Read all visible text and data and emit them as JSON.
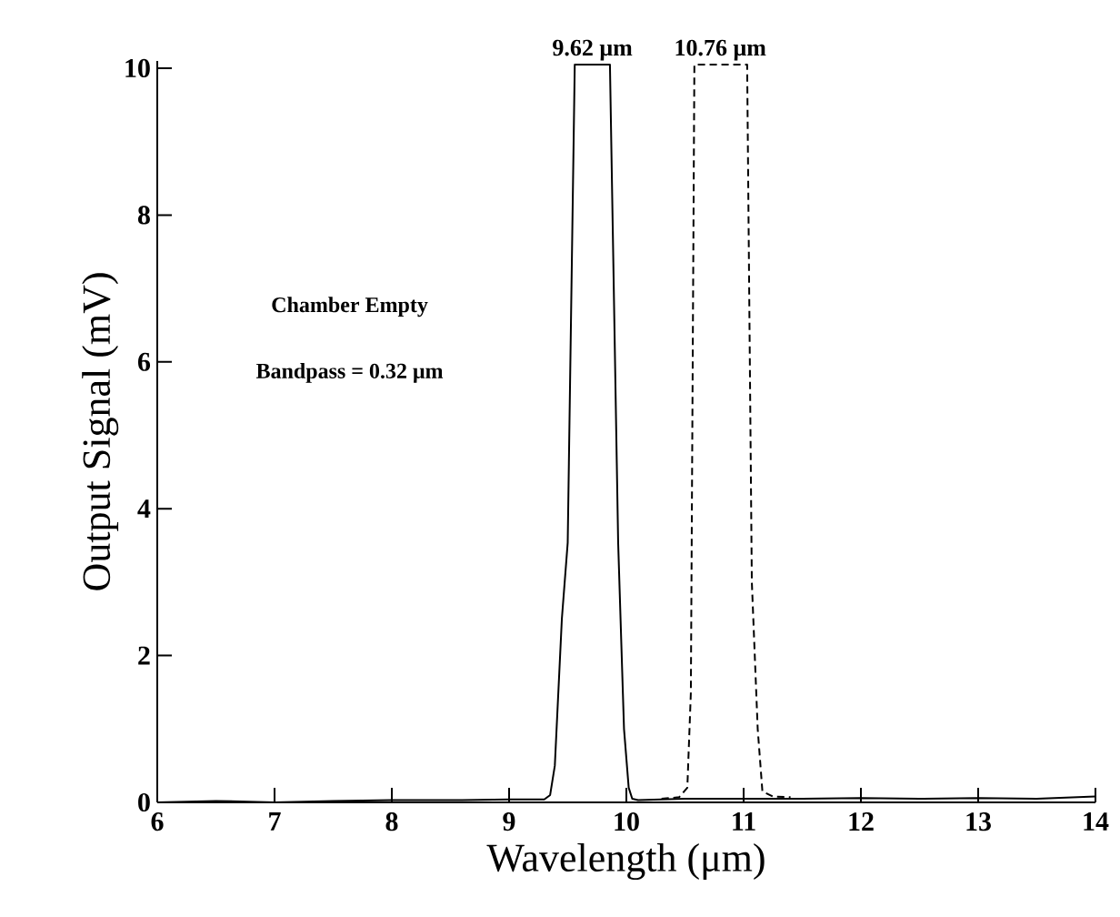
{
  "chart_data": {
    "type": "line",
    "xlabel": "Wavelength (μm)",
    "ylabel": "Output Signal (mV)",
    "xlim": [
      6,
      14
    ],
    "ylim": [
      0,
      10.1
    ],
    "xticks": [
      6,
      7,
      8,
      9,
      10,
      11,
      12,
      13,
      14
    ],
    "yticks": [
      0,
      2,
      4,
      6,
      8,
      10
    ],
    "grid": false,
    "marker": "none",
    "series": [
      {
        "color": "#000000",
        "line_style": "solid",
        "x": [
          6,
          6.5,
          7,
          7.5,
          8,
          8.5,
          9,
          9.3,
          9.35,
          9.39,
          9.42,
          9.45,
          9.5,
          9.56,
          9.86,
          9.93,
          9.98,
          10.02,
          10.05,
          10.1,
          10.5,
          11,
          11.5,
          12,
          12.5,
          13,
          13.5,
          14
        ],
        "values": [
          0,
          0.02,
          0,
          0.02,
          0.03,
          0.03,
          0.04,
          0.04,
          0.1,
          0.5,
          1.5,
          2.5,
          3.54,
          10.05,
          10.05,
          3.54,
          1.0,
          0.2,
          0.05,
          0.03,
          0.05,
          0.05,
          0.05,
          0.06,
          0.05,
          0.06,
          0.05,
          0.08
        ]
      },
      {
        "color": "#000000",
        "line_style": "dashed",
        "x": [
          10.3,
          10.45,
          10.52,
          10.55,
          10.58,
          11.03,
          11.07,
          11.12,
          11.16,
          11.25,
          11.4
        ],
        "values": [
          0.05,
          0.07,
          0.2,
          1.5,
          10.05,
          10.05,
          3.0,
          1.0,
          0.15,
          0.08,
          0.07
        ]
      }
    ],
    "annotations": [
      {
        "text": "9.62 μm",
        "x": 9.71,
        "y": 10.05
      },
      {
        "text": "10.76 μm",
        "x": 10.8,
        "y": 10.05
      },
      "Chamber Empty",
      "Bandpass = 0.32 μm"
    ]
  }
}
